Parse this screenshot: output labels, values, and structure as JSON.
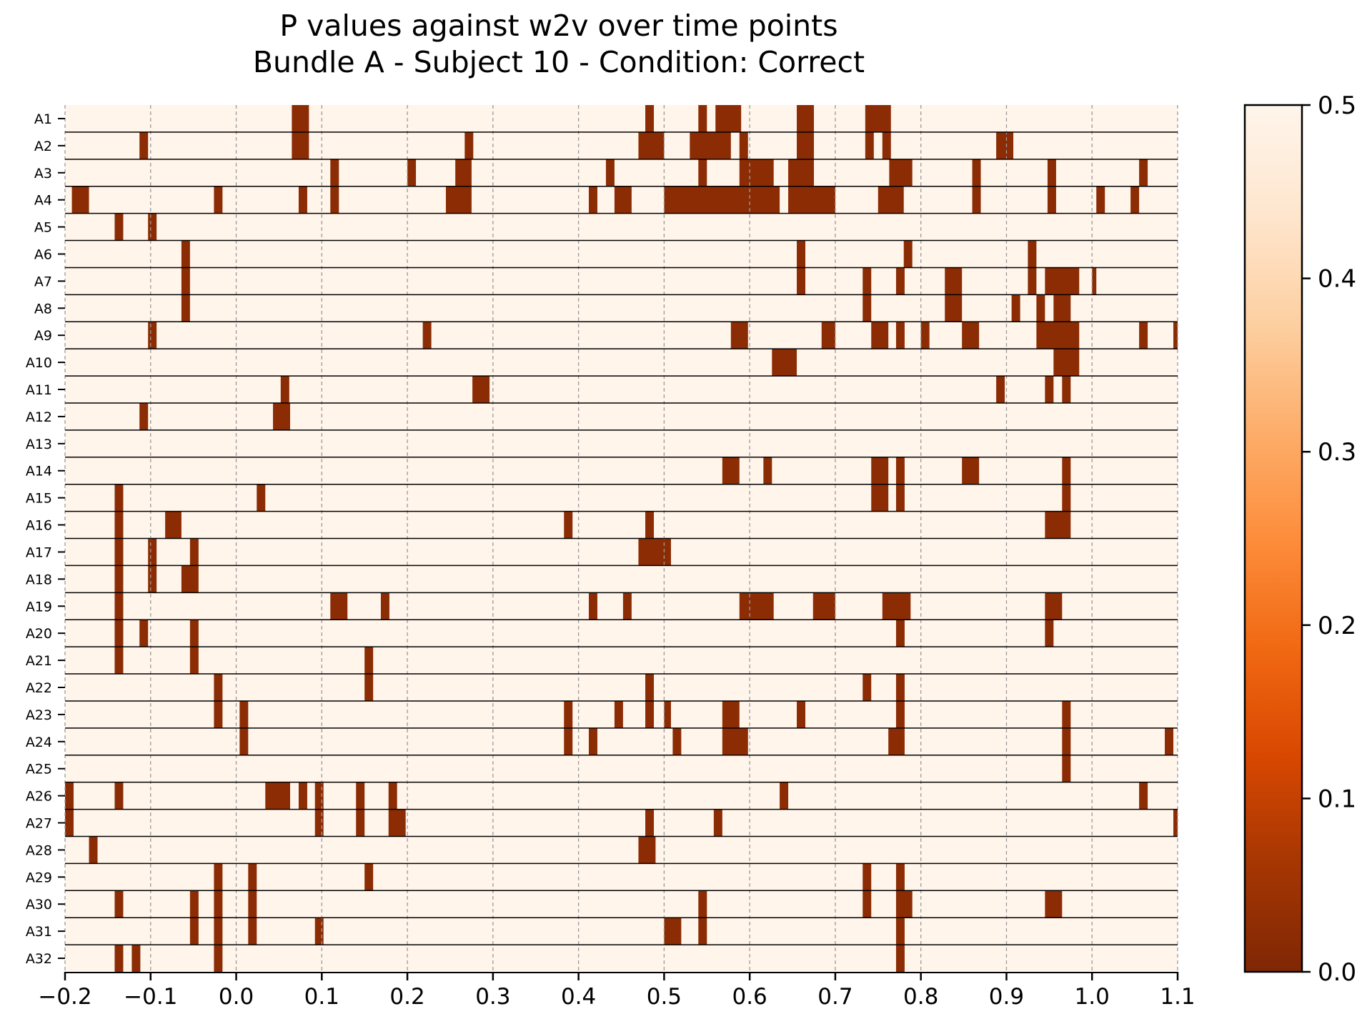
{
  "chart_data": {
    "type": "heatmap",
    "title": "P values against w2v over time points",
    "subtitle": "Bundle A - Subject 10 - Condition: Correct",
    "xlabel": "",
    "ylabel": "",
    "xlim": [
      -0.2,
      1.1
    ],
    "x_ticks": [
      "−0.2",
      "−0.1",
      "0.0",
      "0.1",
      "0.2",
      "0.3",
      "0.4",
      "0.5",
      "0.6",
      "0.7",
      "0.8",
      "0.9",
      "1.0",
      "1.1"
    ],
    "x_tick_values": [
      -0.2,
      -0.1,
      0.0,
      0.1,
      0.2,
      0.3,
      0.4,
      0.5,
      0.6,
      0.7,
      0.8,
      0.9,
      1.0,
      1.1
    ],
    "grid": "vertical dashed gridlines at x ticks",
    "rows": [
      "A1",
      "A2",
      "A3",
      "A4",
      "A5",
      "A6",
      "A7",
      "A8",
      "A9",
      "A10",
      "A11",
      "A12",
      "A13",
      "A14",
      "A15",
      "A16",
      "A17",
      "A18",
      "A19",
      "A20",
      "A21",
      "A22",
      "A23",
      "A24",
      "A25",
      "A26",
      "A27",
      "A28",
      "A29",
      "A30",
      "A31",
      "A32"
    ],
    "background_value": 0.5,
    "significant_value": 0.02,
    "significant_intervals": [
      [
        [
          0.065,
          0.085
        ],
        [
          0.478,
          0.488
        ],
        [
          0.54,
          0.55
        ],
        [
          0.56,
          0.59
        ],
        [
          0.655,
          0.675
        ],
        [
          0.735,
          0.765
        ]
      ],
      [
        [
          0.065,
          0.085
        ],
        [
          -0.113,
          -0.103
        ],
        [
          0.267,
          0.277
        ],
        [
          0.47,
          0.5
        ],
        [
          0.53,
          0.578
        ],
        [
          0.588,
          0.598
        ],
        [
          0.655,
          0.675
        ],
        [
          0.735,
          0.745
        ],
        [
          0.755,
          0.765
        ],
        [
          0.888,
          0.908
        ]
      ],
      [
        [
          0.11,
          0.12
        ],
        [
          0.2,
          0.21
        ],
        [
          0.256,
          0.275
        ],
        [
          0.432,
          0.442
        ],
        [
          0.54,
          0.55
        ],
        [
          0.588,
          0.628
        ],
        [
          0.645,
          0.675
        ],
        [
          0.763,
          0.79
        ],
        [
          0.86,
          0.87
        ],
        [
          0.948,
          0.958
        ],
        [
          1.055,
          1.065
        ]
      ],
      [
        [
          -0.192,
          -0.172
        ],
        [
          -0.026,
          -0.016
        ],
        [
          0.073,
          0.083
        ],
        [
          0.11,
          0.12
        ],
        [
          0.245,
          0.275
        ],
        [
          0.412,
          0.422
        ],
        [
          0.442,
          0.462
        ],
        [
          0.5,
          0.635
        ],
        [
          0.645,
          0.7
        ],
        [
          0.75,
          0.78
        ],
        [
          0.86,
          0.87
        ],
        [
          0.948,
          0.958
        ],
        [
          1.005,
          1.015
        ],
        [
          1.045,
          1.055
        ]
      ],
      [
        [
          -0.142,
          -0.132
        ],
        [
          -0.103,
          -0.093
        ]
      ],
      [
        [
          -0.064,
          -0.054
        ],
        [
          0.655,
          0.665
        ],
        [
          0.78,
          0.79
        ],
        [
          0.925,
          0.935
        ]
      ],
      [
        [
          -0.064,
          -0.054
        ],
        [
          0.655,
          0.665
        ],
        [
          0.732,
          0.742
        ],
        [
          0.771,
          0.781
        ],
        [
          0.828,
          0.848
        ],
        [
          0.925,
          0.935
        ],
        [
          0.945,
          0.985
        ],
        [
          1.0,
          1.005
        ]
      ],
      [
        [
          -0.064,
          -0.054
        ],
        [
          0.732,
          0.742
        ],
        [
          0.828,
          0.848
        ],
        [
          0.906,
          0.916
        ],
        [
          0.935,
          0.945
        ],
        [
          0.955,
          0.975
        ]
      ],
      [
        [
          -0.103,
          -0.093
        ],
        [
          0.218,
          0.228
        ],
        [
          0.578,
          0.598
        ],
        [
          0.684,
          0.7
        ],
        [
          0.742,
          0.762
        ],
        [
          0.771,
          0.781
        ],
        [
          0.8,
          0.81
        ],
        [
          0.848,
          0.868
        ],
        [
          0.935,
          0.985
        ],
        [
          1.055,
          1.065
        ],
        [
          1.095,
          1.1
        ]
      ],
      [
        [
          0.626,
          0.655
        ],
        [
          0.955,
          0.985
        ]
      ],
      [
        [
          0.052,
          0.062
        ],
        [
          0.276,
          0.296
        ],
        [
          0.888,
          0.898
        ],
        [
          0.945,
          0.955
        ],
        [
          0.965,
          0.975
        ]
      ],
      [
        [
          -0.113,
          -0.103
        ],
        [
          0.043,
          0.063
        ]
      ],
      [],
      [
        [
          0.568,
          0.588
        ],
        [
          0.616,
          0.626
        ],
        [
          0.742,
          0.762
        ],
        [
          0.771,
          0.781
        ],
        [
          0.848,
          0.868
        ],
        [
          0.965,
          0.975
        ]
      ],
      [
        [
          -0.142,
          -0.132
        ],
        [
          0.024,
          0.034
        ],
        [
          0.742,
          0.762
        ],
        [
          0.771,
          0.781
        ],
        [
          0.965,
          0.975
        ]
      ],
      [
        [
          -0.142,
          -0.132
        ],
        [
          -0.083,
          -0.064
        ],
        [
          0.383,
          0.393
        ],
        [
          0.478,
          0.488
        ],
        [
          0.945,
          0.975
        ]
      ],
      [
        [
          -0.142,
          -0.132
        ],
        [
          -0.103,
          -0.093
        ],
        [
          -0.054,
          -0.044
        ],
        [
          0.47,
          0.508
        ]
      ],
      [
        [
          -0.142,
          -0.132
        ],
        [
          -0.103,
          -0.093
        ],
        [
          -0.064,
          -0.044
        ]
      ],
      [
        [
          -0.142,
          -0.132
        ],
        [
          0.11,
          0.13
        ],
        [
          0.169,
          0.179
        ],
        [
          0.412,
          0.422
        ],
        [
          0.452,
          0.462
        ],
        [
          0.588,
          0.628
        ],
        [
          0.674,
          0.7
        ],
        [
          0.755,
          0.788
        ],
        [
          0.945,
          0.965
        ]
      ],
      [
        [
          -0.142,
          -0.132
        ],
        [
          -0.113,
          -0.103
        ],
        [
          -0.054,
          -0.044
        ],
        [
          0.771,
          0.781
        ],
        [
          0.945,
          0.955
        ]
      ],
      [
        [
          -0.142,
          -0.132
        ],
        [
          -0.054,
          -0.044
        ],
        [
          0.15,
          0.16
        ]
      ],
      [
        [
          -0.026,
          -0.016
        ],
        [
          0.15,
          0.16
        ],
        [
          0.478,
          0.488
        ],
        [
          0.732,
          0.742
        ],
        [
          0.771,
          0.781
        ]
      ],
      [
        [
          -0.026,
          -0.016
        ],
        [
          0.004,
          0.014
        ],
        [
          0.383,
          0.393
        ],
        [
          0.442,
          0.452
        ],
        [
          0.478,
          0.488
        ],
        [
          0.5,
          0.508
        ],
        [
          0.568,
          0.588
        ],
        [
          0.655,
          0.665
        ],
        [
          0.771,
          0.781
        ],
        [
          0.965,
          0.975
        ]
      ],
      [
        [
          0.004,
          0.014
        ],
        [
          0.383,
          0.393
        ],
        [
          0.412,
          0.422
        ],
        [
          0.51,
          0.52
        ],
        [
          0.568,
          0.598
        ],
        [
          0.762,
          0.781
        ],
        [
          0.965,
          0.975
        ],
        [
          1.085,
          1.095
        ]
      ],
      [
        [
          0.965,
          0.975
        ]
      ],
      [
        [
          -0.2,
          -0.19
        ],
        [
          -0.142,
          -0.132
        ],
        [
          0.034,
          0.063
        ],
        [
          0.073,
          0.083
        ],
        [
          0.092,
          0.102
        ],
        [
          0.14,
          0.15
        ],
        [
          0.178,
          0.188
        ],
        [
          0.635,
          0.645
        ],
        [
          1.055,
          1.065
        ]
      ],
      [
        [
          -0.2,
          -0.19
        ],
        [
          0.092,
          0.102
        ],
        [
          0.14,
          0.15
        ],
        [
          0.178,
          0.198
        ],
        [
          0.478,
          0.488
        ],
        [
          0.558,
          0.568
        ],
        [
          1.095,
          1.1
        ]
      ],
      [
        [
          -0.172,
          -0.162
        ],
        [
          0.47,
          0.49
        ]
      ],
      [
        [
          -0.026,
          -0.016
        ],
        [
          0.014,
          0.024
        ],
        [
          0.15,
          0.16
        ],
        [
          0.732,
          0.742
        ],
        [
          0.771,
          0.781
        ]
      ],
      [
        [
          -0.142,
          -0.132
        ],
        [
          -0.054,
          -0.044
        ],
        [
          -0.026,
          -0.016
        ],
        [
          0.014,
          0.024
        ],
        [
          0.54,
          0.55
        ],
        [
          0.732,
          0.742
        ],
        [
          0.771,
          0.79
        ],
        [
          0.945,
          0.965
        ]
      ],
      [
        [
          -0.054,
          -0.044
        ],
        [
          -0.026,
          -0.016
        ],
        [
          0.014,
          0.024
        ],
        [
          0.092,
          0.102
        ],
        [
          0.5,
          0.52
        ],
        [
          0.54,
          0.55
        ],
        [
          0.771,
          0.781
        ]
      ],
      [
        [
          -0.142,
          -0.132
        ],
        [
          -0.122,
          -0.112
        ],
        [
          -0.026,
          -0.016
        ],
        [
          0.771,
          0.781
        ]
      ]
    ],
    "colorbar": {
      "colormap": "Oranges_r",
      "range": [
        0.0,
        0.5
      ],
      "ticks": [
        "0.0",
        "0.1",
        "0.2",
        "0.3",
        "0.4",
        "0.5"
      ],
      "tick_values": [
        0.0,
        0.1,
        0.2,
        0.3,
        0.4,
        0.5
      ],
      "colors": [
        "#7f2704",
        "#a63603",
        "#d94801",
        "#f16913",
        "#fd8d3c",
        "#fdae6b",
        "#fdd0a2",
        "#fee6ce",
        "#fff5eb"
      ]
    }
  }
}
